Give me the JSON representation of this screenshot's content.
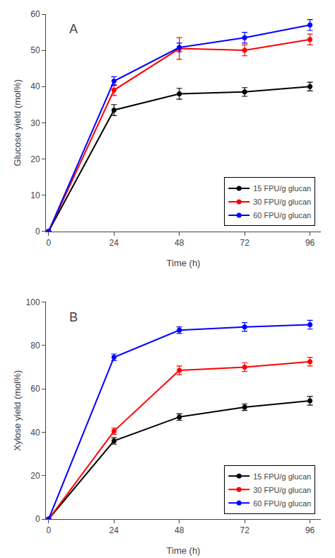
{
  "chart_data": [
    {
      "type": "line",
      "annotations": [
        "A"
      ],
      "xlabel": "Time (h)",
      "ylabel": "Glucose yield (mol%)",
      "x": [
        0,
        24,
        48,
        72,
        96
      ],
      "xlim": [
        -1,
        100
      ],
      "xticks": [
        0,
        24,
        48,
        72,
        96
      ],
      "ylim": [
        0,
        60
      ],
      "yticks": [
        0,
        10,
        20,
        30,
        40,
        50,
        60
      ],
      "grid": false,
      "legend": "lower right",
      "marker": "circle",
      "line_style": "solid",
      "series": [
        {
          "name": "15 FPU/g glucan",
          "color": "black",
          "values": [
            0,
            33.5,
            38.0,
            38.5,
            40.0
          ],
          "errors": [
            0,
            1.5,
            1.5,
            1.2,
            1.2
          ]
        },
        {
          "name": "30 FPU/g glucan",
          "color": "red",
          "values": [
            0,
            39.0,
            50.5,
            50.0,
            53.0
          ],
          "errors": [
            0,
            1.5,
            3.0,
            1.5,
            1.5
          ]
        },
        {
          "name": "60 FPU/g glucan",
          "color": "blue",
          "values": [
            0,
            41.5,
            50.8,
            53.5,
            57.0
          ],
          "errors": [
            0,
            1.2,
            1.2,
            1.5,
            1.5
          ]
        }
      ]
    },
    {
      "type": "line",
      "annotations": [
        "B"
      ],
      "xlabel": "Time (h)",
      "ylabel": "Xylose yield (mol%)",
      "x": [
        0,
        24,
        48,
        72,
        96
      ],
      "xlim": [
        -1,
        100
      ],
      "xticks": [
        0,
        24,
        48,
        72,
        96
      ],
      "ylim": [
        0,
        100
      ],
      "yticks": [
        0,
        20,
        40,
        60,
        80,
        100
      ],
      "grid": false,
      "legend": "lower right",
      "marker": "circle",
      "line_style": "solid",
      "series": [
        {
          "name": "15 FPU/g glucan",
          "color": "black",
          "values": [
            0,
            36.0,
            47.0,
            51.5,
            54.5
          ],
          "errors": [
            0,
            1.5,
            1.5,
            1.5,
            2.0
          ]
        },
        {
          "name": "30 FPU/g glucan",
          "color": "red",
          "values": [
            0,
            40.5,
            68.5,
            70.0,
            72.5
          ],
          "errors": [
            0,
            1.5,
            2.0,
            2.0,
            2.0
          ]
        },
        {
          "name": "60 FPU/g glucan",
          "color": "blue",
          "values": [
            0,
            74.5,
            87.0,
            88.5,
            89.5
          ],
          "errors": [
            0,
            1.5,
            1.5,
            2.0,
            2.0
          ]
        }
      ]
    }
  ]
}
